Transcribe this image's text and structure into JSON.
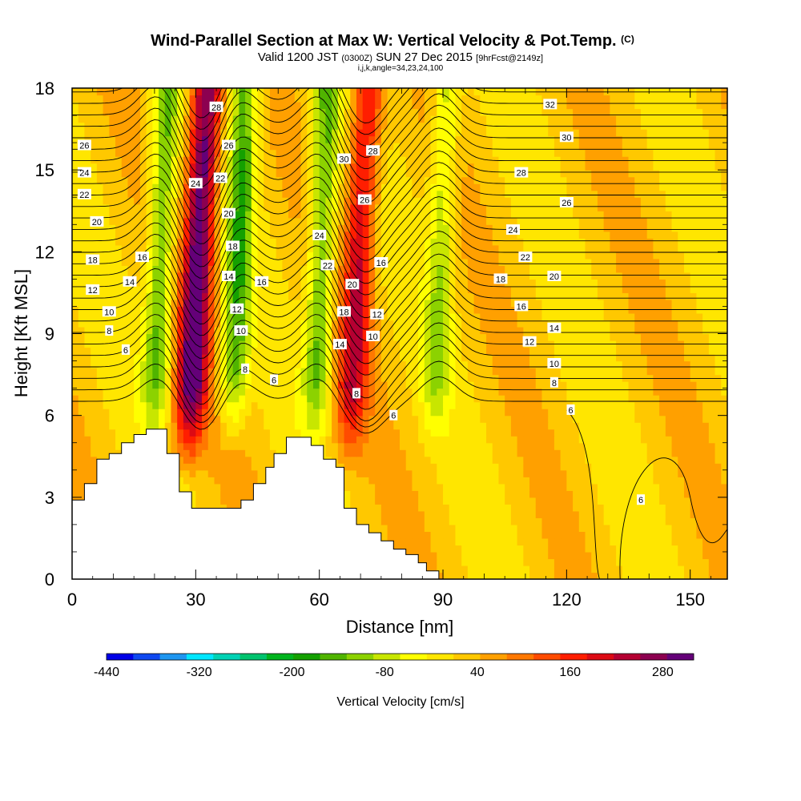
{
  "chart_data": {
    "type": "heatmap",
    "title": "Wind-Parallel Section at Max W: Vertical Velocity & Pot.Temp.",
    "title_mark": "(C)",
    "subtitle_parts": [
      "Valid 1200 JST",
      "(0300Z)",
      "SUN 27 Dec 2015",
      "[9hrFcst@2149z]"
    ],
    "subtitle2": "i,j,k,angle=34,23,24,100",
    "xlabel": "Distance [nm]",
    "ylabel": "Height [Kft MSL]",
    "xlim": [
      0,
      159
    ],
    "ylim": [
      0,
      18
    ],
    "xticks": [
      0,
      30,
      60,
      90,
      120,
      150
    ],
    "yticks": [
      0,
      3,
      6,
      9,
      12,
      15,
      18
    ],
    "colorbar": {
      "label": "Vertical Velocity [cm/s]",
      "tick_labels": [
        "-440",
        "-320",
        "-200",
        "-80",
        "40",
        "160",
        "280"
      ],
      "tick_values": [
        -440,
        -320,
        -200,
        -80,
        40,
        160,
        280
      ],
      "min": -440,
      "max": 320,
      "colors": [
        "#0000e6",
        "#0f48f0",
        "#1e96f0",
        "#00e6ff",
        "#00d2b4",
        "#00c36e",
        "#00b41e",
        "#14a000",
        "#50b400",
        "#8cd200",
        "#c8e600",
        "#ffff00",
        "#ffe600",
        "#ffc800",
        "#ffa000",
        "#ff7800",
        "#ff4b00",
        "#ff1e00",
        "#dc0a14",
        "#b40032",
        "#8c0050",
        "#640078"
      ]
    },
    "updraft_cores": [
      {
        "x": 30,
        "peak_cm_s": 300
      },
      {
        "x": 69,
        "peak_cm_s": 190
      }
    ],
    "downdraft_cores": [
      {
        "x": 21,
        "min_cm_s": -160
      },
      {
        "x": 40,
        "min_cm_s": -170
      },
      {
        "x": 60,
        "min_cm_s": -160
      },
      {
        "x": 89,
        "min_cm_s": -110
      }
    ],
    "theta_contours": {
      "interval": 1,
      "labels": [
        {
          "v": "32",
          "x": 116,
          "y": 17.4
        },
        {
          "v": "30",
          "x": 120,
          "y": 16.2
        },
        {
          "v": "28",
          "x": 109,
          "y": 14.9
        },
        {
          "v": "26",
          "x": 120,
          "y": 13.8
        },
        {
          "v": "24",
          "x": 107,
          "y": 12.8
        },
        {
          "v": "22",
          "x": 110,
          "y": 11.8
        },
        {
          "v": "20",
          "x": 117,
          "y": 11.1
        },
        {
          "v": "18",
          "x": 104,
          "y": 11.0
        },
        {
          "v": "16",
          "x": 109,
          "y": 10.0
        },
        {
          "v": "14",
          "x": 117,
          "y": 9.2
        },
        {
          "v": "12",
          "x": 111,
          "y": 8.7
        },
        {
          "v": "10",
          "x": 117,
          "y": 7.9
        },
        {
          "v": "8",
          "x": 117,
          "y": 7.2
        },
        {
          "v": "6",
          "x": 121,
          "y": 6.2
        },
        {
          "v": "6",
          "x": 138,
          "y": 2.9
        },
        {
          "v": "26",
          "x": 3,
          "y": 15.9
        },
        {
          "v": "24",
          "x": 3,
          "y": 14.9
        },
        {
          "v": "22",
          "x": 3,
          "y": 14.1
        },
        {
          "v": "20",
          "x": 6,
          "y": 13.1
        },
        {
          "v": "18",
          "x": 5,
          "y": 11.7
        },
        {
          "v": "16",
          "x": 17,
          "y": 11.8
        },
        {
          "v": "14",
          "x": 14,
          "y": 10.9
        },
        {
          "v": "12",
          "x": 5,
          "y": 10.6
        },
        {
          "v": "10",
          "x": 9,
          "y": 9.8
        },
        {
          "v": "8",
          "x": 9,
          "y": 9.1
        },
        {
          "v": "6",
          "x": 13,
          "y": 8.4
        },
        {
          "v": "28",
          "x": 35,
          "y": 17.3
        },
        {
          "v": "26",
          "x": 38,
          "y": 15.9
        },
        {
          "v": "24",
          "x": 30,
          "y": 14.5
        },
        {
          "v": "22",
          "x": 36,
          "y": 14.7
        },
        {
          "v": "20",
          "x": 38,
          "y": 13.4
        },
        {
          "v": "18",
          "x": 39,
          "y": 12.2
        },
        {
          "v": "14",
          "x": 38,
          "y": 11.1
        },
        {
          "v": "16",
          "x": 46,
          "y": 10.9
        },
        {
          "v": "12",
          "x": 40,
          "y": 9.9
        },
        {
          "v": "10",
          "x": 41,
          "y": 9.1
        },
        {
          "v": "8",
          "x": 42,
          "y": 7.7
        },
        {
          "v": "6",
          "x": 49,
          "y": 7.3
        },
        {
          "v": "30",
          "x": 66,
          "y": 15.4
        },
        {
          "v": "28",
          "x": 73,
          "y": 15.7
        },
        {
          "v": "26",
          "x": 71,
          "y": 13.9
        },
        {
          "v": "24",
          "x": 60,
          "y": 12.6
        },
        {
          "v": "22",
          "x": 62,
          "y": 11.5
        },
        {
          "v": "20",
          "x": 68,
          "y": 10.8
        },
        {
          "v": "16",
          "x": 75,
          "y": 11.6
        },
        {
          "v": "18",
          "x": 66,
          "y": 9.8
        },
        {
          "v": "12",
          "x": 74,
          "y": 9.7
        },
        {
          "v": "14",
          "x": 65,
          "y": 8.6
        },
        {
          "v": "10",
          "x": 73,
          "y": 8.9
        },
        {
          "v": "8",
          "x": 69,
          "y": 6.8
        },
        {
          "v": "6",
          "x": 78,
          "y": 6.0
        }
      ]
    },
    "terrain_profile": [
      [
        0,
        2.9
      ],
      [
        3,
        2.9
      ],
      [
        3,
        3.5
      ],
      [
        6,
        3.5
      ],
      [
        6,
        4.4
      ],
      [
        9,
        4.4
      ],
      [
        9,
        4.6
      ],
      [
        12,
        4.6
      ],
      [
        12,
        5.0
      ],
      [
        15,
        5.0
      ],
      [
        15,
        5.3
      ],
      [
        18,
        5.3
      ],
      [
        18,
        5.5
      ],
      [
        23,
        5.5
      ],
      [
        23,
        4.6
      ],
      [
        26,
        4.6
      ],
      [
        26,
        3.2
      ],
      [
        29,
        3.2
      ],
      [
        29,
        2.6
      ],
      [
        41,
        2.6
      ],
      [
        41,
        2.9
      ],
      [
        44,
        2.9
      ],
      [
        44,
        3.5
      ],
      [
        47,
        3.5
      ],
      [
        47,
        4.1
      ],
      [
        49,
        4.1
      ],
      [
        49,
        4.6
      ],
      [
        52,
        4.6
      ],
      [
        52,
        5.2
      ],
      [
        58,
        5.2
      ],
      [
        58,
        4.9
      ],
      [
        61,
        4.9
      ],
      [
        61,
        4.4
      ],
      [
        64,
        4.4
      ],
      [
        64,
        4.1
      ],
      [
        66,
        4.1
      ],
      [
        66,
        2.6
      ],
      [
        69,
        2.6
      ],
      [
        69,
        2.0
      ],
      [
        72,
        2.0
      ],
      [
        72,
        1.7
      ],
      [
        75,
        1.7
      ],
      [
        75,
        1.4
      ],
      [
        78,
        1.4
      ],
      [
        78,
        1.1
      ],
      [
        81,
        1.1
      ],
      [
        81,
        0.9
      ],
      [
        84,
        0.9
      ],
      [
        84,
        0.6
      ],
      [
        86,
        0.6
      ],
      [
        86,
        0.3
      ],
      [
        89,
        0.3
      ],
      [
        89,
        0
      ]
    ]
  }
}
